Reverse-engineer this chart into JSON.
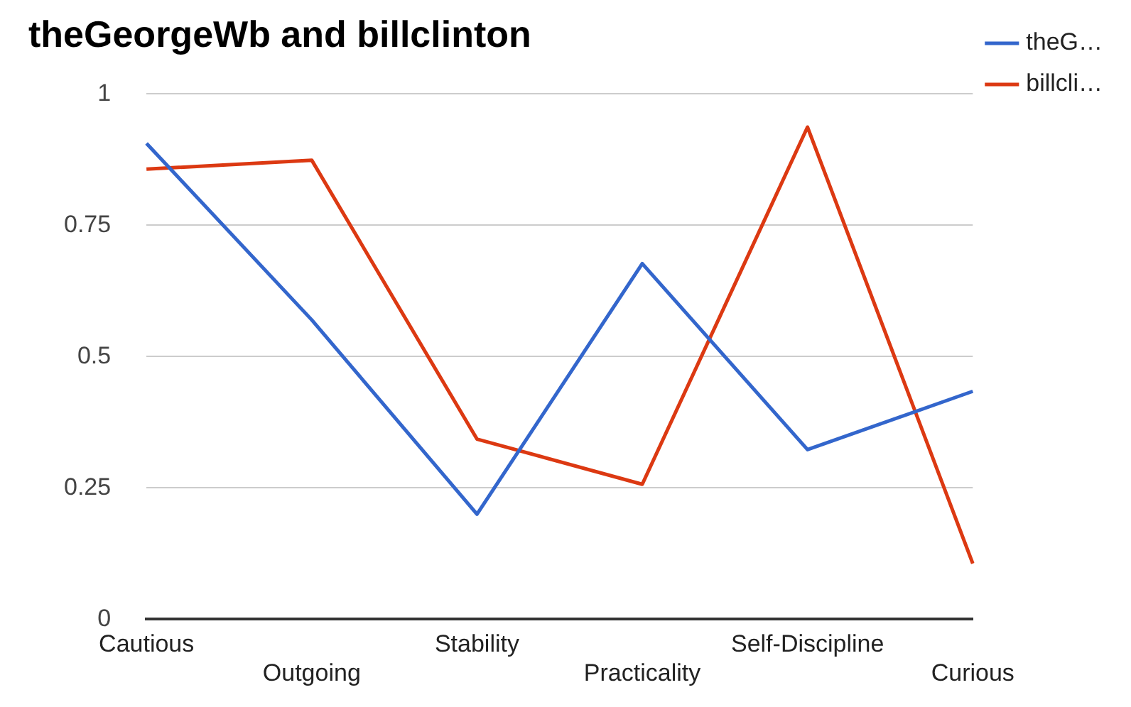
{
  "chart_data": {
    "type": "line",
    "title": "theGeorgeWb and billclinton",
    "categories": [
      "Cautious",
      "Outgoing",
      "Stability",
      "Practicality",
      "Self-Discipline",
      "Curious"
    ],
    "series": [
      {
        "name": "theG…",
        "color": "#3366cc",
        "values": [
          0.906,
          0.57,
          0.2,
          0.677,
          0.323,
          0.434
        ]
      },
      {
        "name": "billcli…",
        "color": "#dc3912",
        "values": [
          0.857,
          0.874,
          0.343,
          0.257,
          0.937,
          0.106
        ]
      }
    ],
    "ylim": [
      0,
      1
    ],
    "yticks": [
      0,
      0.25,
      0.5,
      0.75,
      1
    ],
    "grid": "y",
    "legend": "top right",
    "marker": "none",
    "line_style": "solid"
  }
}
